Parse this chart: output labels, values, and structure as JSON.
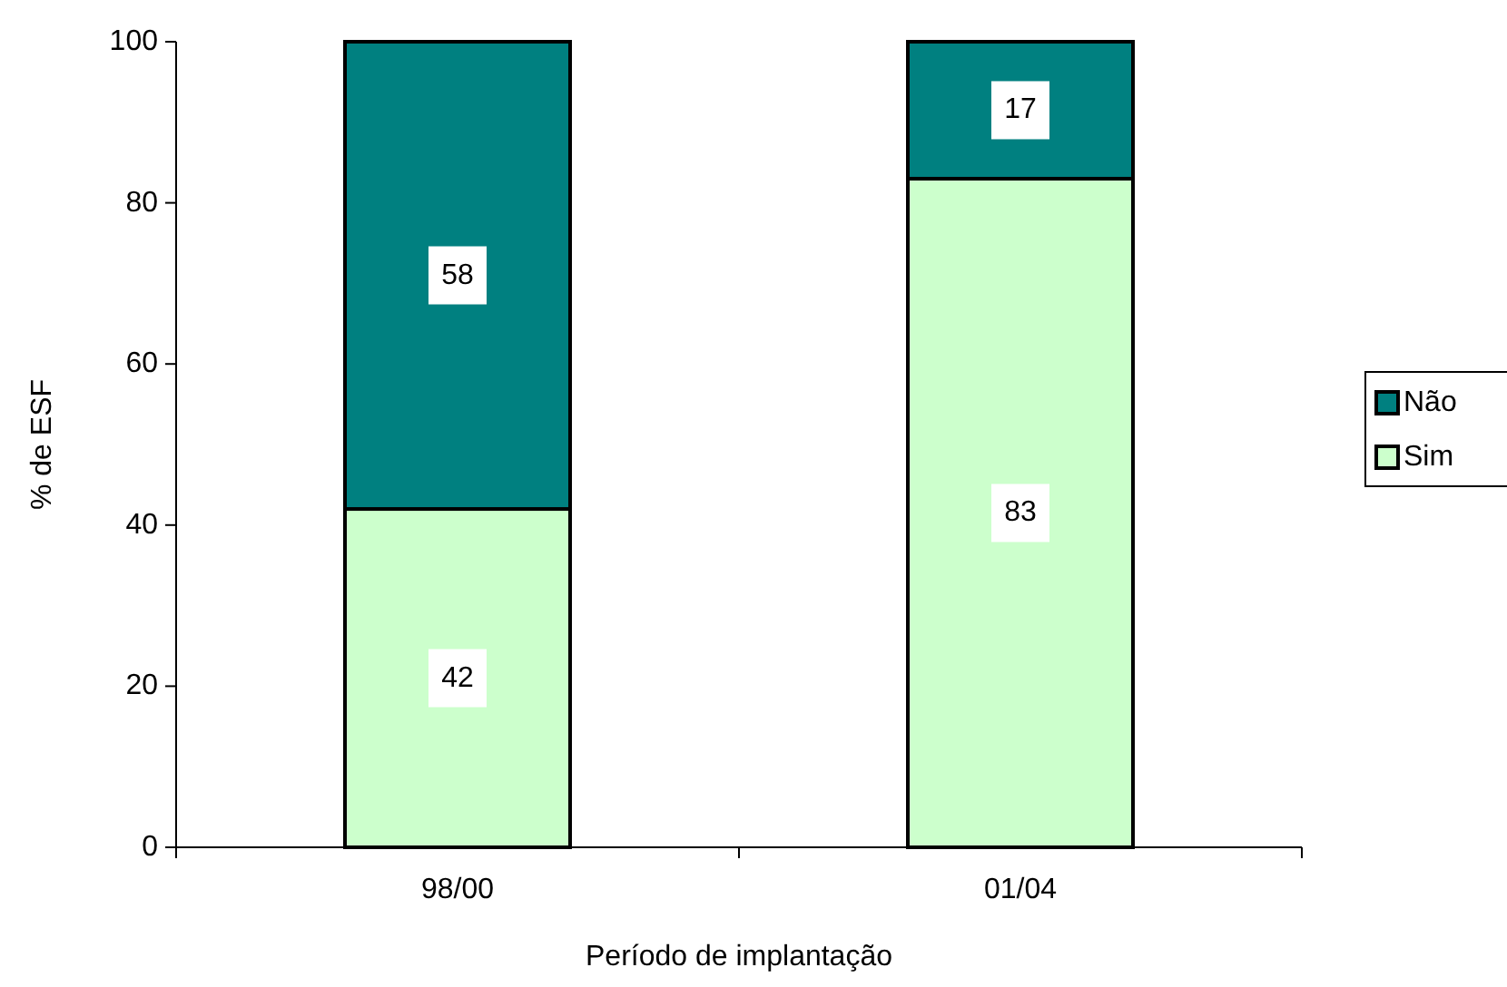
{
  "chart_data": {
    "type": "bar",
    "stacked": true,
    "xlabel": "Período de implantação",
    "ylabel": "% de ESF",
    "categories": [
      "98/00",
      "01/04"
    ],
    "series": [
      {
        "name": "Sim",
        "color": "#ccffcc",
        "values": [
          42,
          83
        ]
      },
      {
        "name": "Não",
        "color": "#008080",
        "values": [
          58,
          17
        ]
      }
    ],
    "ylim": [
      0,
      100
    ],
    "yticks": [
      0,
      20,
      40,
      60,
      80,
      100
    ],
    "data_labels": true,
    "legend": "right"
  }
}
